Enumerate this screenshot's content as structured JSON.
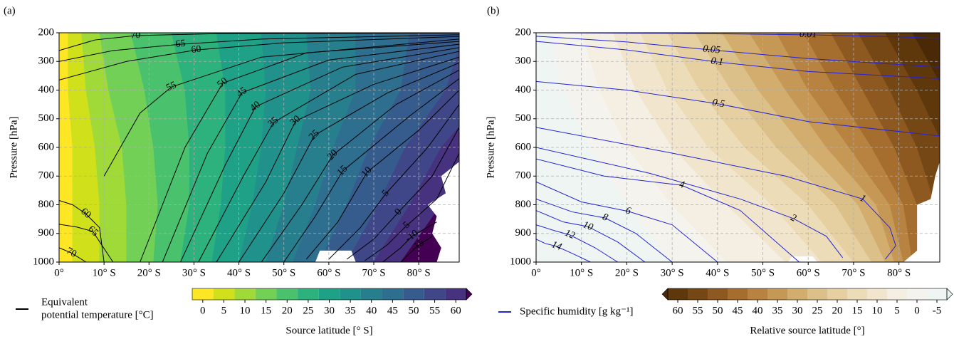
{
  "chart_data": [
    {
      "type": "contour",
      "panel_label": "(a)",
      "ylabel": "Pressure [hPa]",
      "xlim": [
        0,
        89
      ],
      "ylim": [
        1000,
        200
      ],
      "grid": true,
      "xticks": [
        {
          "value": 0,
          "label": "0°"
        },
        {
          "value": 10,
          "label": "10° S"
        },
        {
          "value": 20,
          "label": "20° S"
        },
        {
          "value": 30,
          "label": "30° S"
        },
        {
          "value": 40,
          "label": "40° S"
        },
        {
          "value": 50,
          "label": "50° S"
        },
        {
          "value": 60,
          "label": "60° S"
        },
        {
          "value": 70,
          "label": "70° S"
        },
        {
          "value": 80,
          "label": "80° S"
        }
      ],
      "yticks": [
        200,
        300,
        400,
        500,
        600,
        700,
        800,
        900,
        1000
      ],
      "fill": {
        "p": [
          200,
          400,
          600,
          800,
          1000
        ],
        "levels": [
          2.5,
          7.5,
          12.5,
          17.5,
          22.5,
          27.5,
          32.5,
          37.5,
          42.5,
          47.5,
          52.5,
          57.5,
          62.5
        ],
        "x": [
          [
            2,
            2,
            3,
            3,
            3
          ],
          [
            5,
            6,
            8,
            9,
            9
          ],
          [
            9,
            11,
            14,
            15,
            15
          ],
          [
            16,
            19,
            21,
            22,
            21
          ],
          [
            25,
            28,
            29,
            29,
            27
          ],
          [
            35,
            37,
            37,
            36,
            34
          ],
          [
            45,
            46,
            45,
            43,
            40
          ],
          [
            55,
            56,
            53,
            50,
            46
          ],
          [
            66,
            66,
            61,
            57,
            52
          ],
          [
            78,
            76,
            69,
            64,
            58
          ],
          [
            90,
            86,
            77,
            71,
            64
          ],
          [
            102,
            96,
            85,
            78,
            70
          ],
          [
            114,
            106,
            95,
            85,
            76
          ]
        ]
      },
      "missing_regions": [
        {
          "x": [
            89,
            85,
            86,
            82,
            84,
            83,
            85,
            84,
            89
          ],
          "y": [
            650,
            700,
            760,
            800,
            840,
            900,
            950,
            1000,
            1000
          ]
        },
        {
          "x": [
            57,
            58,
            65,
            66
          ],
          "y": [
            1000,
            960,
            960,
            1000
          ]
        }
      ],
      "contours": {
        "color": "#000000",
        "lines": [
          {
            "level": 70,
            "x": [
              0,
              8,
              17,
              35,
              89
            ],
            "y": [
              262,
              225,
              210,
              203,
              201
            ]
          },
          {
            "level": 65,
            "x": [
              0,
              12,
              27,
              45,
              89
            ],
            "y": [
              300,
              262,
              240,
              222,
              207
            ]
          },
          {
            "level": 60,
            "x": [
              0,
              15,
              30.5,
              50,
              89
            ],
            "y": [
              365,
              300,
              260,
              235,
              213
            ]
          },
          {
            "level": 55,
            "x": [
              10,
              18,
              25,
              45,
              89
            ],
            "y": [
              700,
              480,
              389,
              285,
              222
            ]
          },
          {
            "level": 50,
            "x": [
              18,
              28,
              36.4,
              55,
              89
            ],
            "y": [
              1000,
              600,
              376,
              270,
              230
            ]
          },
          {
            "level": 45,
            "x": [
              23,
              33,
              40.7,
              60,
              89
            ],
            "y": [
              1000,
              620,
              409,
              295,
              240
            ]
          },
          {
            "level": 40,
            "x": [
              27,
              37,
              43.7,
              63,
              89
            ],
            "y": [
              1000,
              660,
              458,
              320,
              252
            ]
          },
          {
            "level": 35,
            "x": [
              31,
              41,
              47.7,
              66,
              89
            ],
            "y": [
              1000,
              700,
              513,
              345,
              265
            ]
          },
          {
            "level": 30,
            "x": [
              35,
              46,
              52.6,
              70,
              89
            ],
            "y": [
              1000,
              720,
              508,
              380,
              285
            ]
          },
          {
            "level": 25,
            "x": [
              40,
              50,
              56.8,
              73,
              89
            ],
            "y": [
              1000,
              760,
              558,
              410,
              305
            ]
          },
          {
            "level": 20,
            "x": [
              45,
              54,
              60.9,
              75,
              89
            ],
            "y": [
              1000,
              800,
              627,
              450,
              330
            ]
          },
          {
            "level": 15,
            "x": [
              50,
              57,
              63.1,
              78,
              89
            ],
            "y": [
              1000,
              840,
              682,
              490,
              360
            ]
          },
          {
            "level": 10,
            "x": [
              55,
              62,
              68.5,
              80,
              89
            ],
            "y": [
              990,
              860,
              687,
              540,
              400
            ]
          },
          {
            "level": 5,
            "x": [
              60,
              67,
              72.7,
              82,
              89
            ],
            "y": [
              990,
              880,
              761,
              600,
              450
            ]
          },
          {
            "level": 0,
            "x": [
              64,
              70,
              75.5,
              83,
              89
            ],
            "y": [
              990,
              920,
              826,
              700,
              530
            ]
          },
          {
            "level": -5,
            "x": [
              68,
              73,
              77.1,
              84,
              89
            ],
            "y": [
              995,
              940,
              876,
              780,
              620
            ]
          },
          {
            "level": -10,
            "x": [
              72,
              76,
              78.5,
              84
            ],
            "y": [
              1000,
              950,
              910,
              860
            ]
          },
          {
            "level": -15,
            "x": [
              76,
              78,
              79.8,
              83
            ],
            "y": [
              1000,
              970,
              943,
              910
            ]
          },
          {
            "level": 60,
            "x": [
              0,
              3,
              5.9,
              9,
              10
            ],
            "y": [
              785,
              800,
              831,
              880,
              1000
            ]
          },
          {
            "level": 65,
            "x": [
              0,
              4,
              7.5,
              12
            ],
            "y": [
              868,
              878,
              893,
              1000
            ]
          },
          {
            "level": 70,
            "x": [
              0,
              2.7,
              6
            ],
            "y": [
              950,
              968,
              1000
            ]
          }
        ]
      },
      "legend": {
        "label": [
          "Equivalent",
          "potential temperature [°C]"
        ]
      },
      "colorbar": {
        "label": "Source latitude [° S]",
        "ticks": [
          0,
          5,
          10,
          15,
          20,
          25,
          30,
          35,
          40,
          45,
          50,
          55,
          60
        ],
        "boundaries": [
          -2.5,
          2.5,
          7.5,
          12.5,
          17.5,
          22.5,
          27.5,
          32.5,
          37.5,
          42.5,
          47.5,
          52.5,
          57.5,
          62.5
        ],
        "colors": [
          "#fde725",
          "#d0e11c",
          "#a0da39",
          "#73d056",
          "#4ac16d",
          "#2db27d",
          "#1fa187",
          "#21918c",
          "#277f8e",
          "#2e6e8e",
          "#365c8d",
          "#3f4788",
          "#46327e",
          "#440154"
        ],
        "extend": "max",
        "reverse": false
      }
    },
    {
      "type": "contour",
      "panel_label": "(b)",
      "ylabel": "Pressure [hPa]",
      "xlim": [
        0,
        89
      ],
      "ylim": [
        1000,
        200
      ],
      "grid": true,
      "xticks": [
        {
          "value": 0,
          "label": "0°"
        },
        {
          "value": 10,
          "label": "10° S"
        },
        {
          "value": 20,
          "label": "20° S"
        },
        {
          "value": 30,
          "label": "30° S"
        },
        {
          "value": 40,
          "label": "40° S"
        },
        {
          "value": 50,
          "label": "50° S"
        },
        {
          "value": 60,
          "label": "60° S"
        },
        {
          "value": 70,
          "label": "70° S"
        },
        {
          "value": 80,
          "label": "80° S"
        }
      ],
      "yticks": [
        200,
        300,
        400,
        500,
        600,
        700,
        800,
        900,
        1000
      ],
      "fill": {
        "p": [
          200,
          400,
          600,
          800,
          1000
        ],
        "levels": [
          -2.5,
          2.5,
          7.5,
          12.5,
          17.5,
          22.5,
          27.5,
          32.5,
          37.5,
          42.5,
          47.5,
          52.5,
          57.5,
          62.5
        ],
        "x": [
          [
            3,
            6,
            12,
            20,
            30
          ],
          [
            10,
            14,
            20,
            30,
            42
          ],
          [
            17,
            22,
            30,
            42,
            55
          ],
          [
            23,
            29,
            38,
            52,
            63
          ],
          [
            29,
            36,
            46,
            60,
            70
          ],
          [
            35,
            43,
            53,
            66,
            74
          ],
          [
            41,
            49,
            59,
            71,
            77
          ],
          [
            47,
            55,
            64,
            75,
            79
          ],
          [
            53,
            60,
            69,
            78,
            81
          ],
          [
            59,
            66,
            74,
            81,
            83
          ],
          [
            65,
            72,
            79,
            84,
            86
          ],
          [
            71,
            78,
            84,
            88,
            89
          ],
          [
            77,
            84,
            90,
            92,
            93
          ],
          [
            83,
            90,
            96,
            98,
            99
          ]
        ]
      },
      "missing_regions": [
        {
          "x": [
            89,
            88,
            87,
            84,
            84,
            81,
            89
          ],
          "y": [
            650,
            700,
            780,
            800,
            960,
            1000,
            1000
          ]
        },
        {
          "x": [
            55.5,
            56.5,
            61,
            62
          ],
          "y": [
            1000,
            980,
            980,
            1000
          ]
        }
      ],
      "contours": {
        "color": "#2323d8",
        "lines": [
          {
            "level": 0.01,
            "x": [
              0,
              30,
              60,
              81.2,
              89
            ],
            "y": [
              200,
              202,
              207,
              215,
              220
            ]
          },
          {
            "level": 0.05,
            "x": [
              0,
              20,
              38.7,
              60,
              89
            ],
            "y": [
              212,
              232,
              260,
              290,
              320
            ]
          },
          {
            "level": 0.1,
            "x": [
              0,
              20,
              39.9,
              60,
              89
            ],
            "y": [
              230,
              260,
              302,
              335,
              360
            ]
          },
          {
            "level": 0.5,
            "x": [
              0,
              20,
              40.2,
              60,
              89
            ],
            "y": [
              370,
              400,
              448,
              510,
              560
            ]
          },
          {
            "level": 1,
            "x": [
              0,
              30,
              55,
              72,
              78,
              79.3,
              77
            ],
            "y": [
              530,
              620,
              700,
              780,
              880,
              943,
              990
            ]
          },
          {
            "level": 2,
            "x": [
              0,
              25,
              45,
              56.7,
              64,
              67.6
            ],
            "y": [
              600,
              690,
              780,
              848,
              910,
              985
            ]
          },
          {
            "level": 4,
            "x": [
              0,
              15,
              32.1,
              45,
              58
            ],
            "y": [
              640,
              700,
              732,
              820,
              1000
            ]
          },
          {
            "level": 6,
            "x": [
              0,
              10,
              20.3,
              30,
              40
            ],
            "y": [
              720,
              790,
              823,
              870,
              1000
            ]
          },
          {
            "level": 8,
            "x": [
              0,
              8,
              15.2,
              22,
              30
            ],
            "y": [
              780,
              825,
              846,
              900,
              1000
            ]
          },
          {
            "level": 10,
            "x": [
              0,
              6,
              11.4,
              18,
              24
            ],
            "y": [
              820,
              860,
              876,
              930,
              1000
            ]
          },
          {
            "level": 12,
            "x": [
              0,
              4,
              7.4,
              13,
              18
            ],
            "y": [
              870,
              890,
              905,
              950,
              1000
            ]
          },
          {
            "level": 14,
            "x": [
              0,
              2,
              4.5,
              8,
              12
            ],
            "y": [
              920,
              935,
              945,
              970,
              1000
            ]
          }
        ]
      },
      "legend": {
        "label": [
          "Specific humidity [g kg⁻¹]"
        ]
      },
      "colorbar": {
        "label": "Relative source latitude [°]",
        "ticks": [
          60,
          55,
          50,
          45,
          40,
          35,
          30,
          25,
          20,
          15,
          10,
          5,
          0,
          -5
        ],
        "boundaries": [
          -7.5,
          -2.5,
          2.5,
          7.5,
          12.5,
          17.5,
          22.5,
          27.5,
          32.5,
          37.5,
          42.5,
          47.5,
          52.5,
          57.5,
          62.5
        ],
        "colors": [
          "#e8f4f2",
          "#eef5f3",
          "#f5f3ee",
          "#f4efe2",
          "#f1e6cd",
          "#ecdcb7",
          "#e6cfa0",
          "#dcc08a",
          "#d2ad6e",
          "#c69856",
          "#b88240",
          "#a56d2e",
          "#8d5920",
          "#754714",
          "#5e370a",
          "#4a2a06"
        ],
        "extend": "both",
        "reverse": true
      }
    }
  ]
}
